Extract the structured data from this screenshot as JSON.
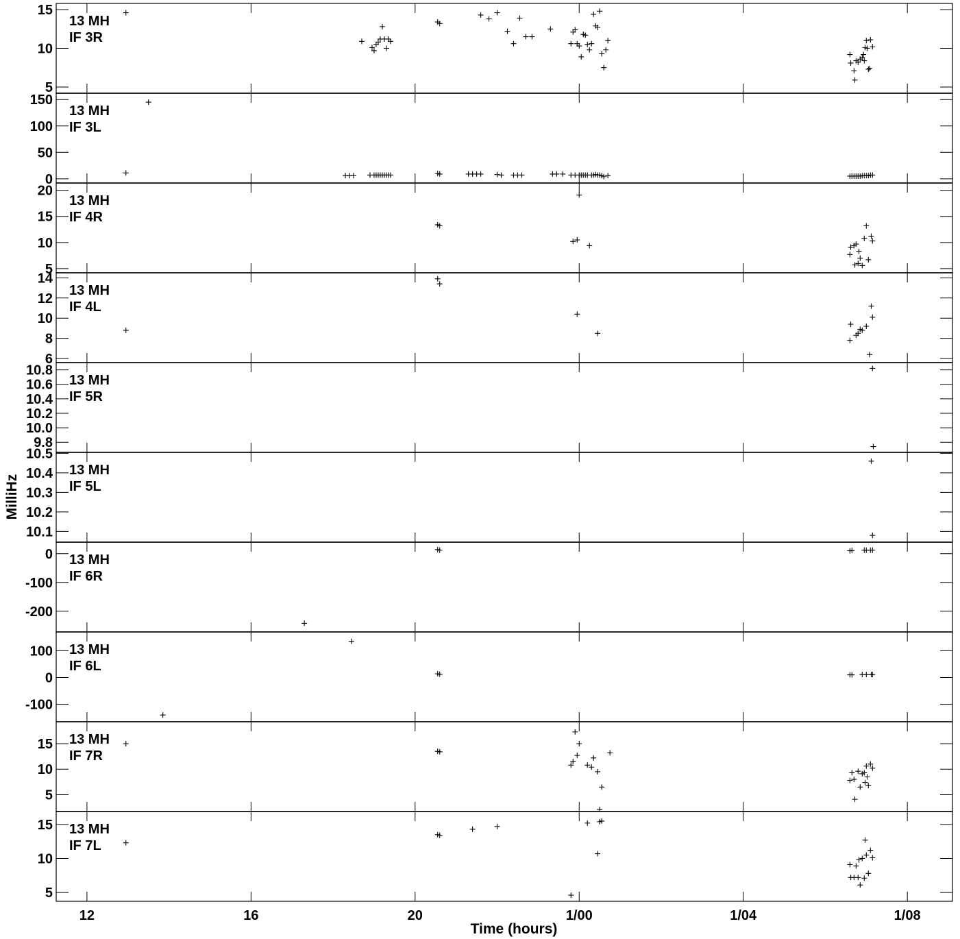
{
  "chart_data": {
    "type": "scatter",
    "xlabel": "Time (hours)",
    "ylabel": "MilliHz",
    "x_range": [
      11.25,
      33.1
    ],
    "x_ticks": [
      {
        "t": 12,
        "label": "12"
      },
      {
        "t": 16,
        "label": "16"
      },
      {
        "t": 20,
        "label": "20"
      },
      {
        "t": 24,
        "label": "1/00"
      },
      {
        "t": 28,
        "label": "1/04"
      },
      {
        "t": 32,
        "label": "1/08"
      }
    ],
    "panels": [
      {
        "antenna": "13 MH",
        "if": "IF 3R",
        "ylim": [
          4.2,
          15.8
        ],
        "yticks": [
          {
            "v": 5,
            "label": "5"
          },
          {
            "v": 10,
            "label": "10"
          },
          {
            "v": 15,
            "label": "15"
          }
        ],
        "points": [
          [
            12.95,
            14.6
          ],
          [
            18.7,
            10.9
          ],
          [
            18.95,
            10.1
          ],
          [
            19.0,
            9.7
          ],
          [
            19.05,
            10.5
          ],
          [
            19.1,
            10.8
          ],
          [
            19.15,
            11.2
          ],
          [
            19.2,
            12.8
          ],
          [
            19.25,
            11.2
          ],
          [
            19.3,
            10.0
          ],
          [
            19.35,
            11.2
          ],
          [
            19.4,
            10.9
          ],
          [
            20.55,
            13.4
          ],
          [
            20.6,
            13.2
          ],
          [
            21.6,
            14.3
          ],
          [
            21.8,
            13.8
          ],
          [
            22.0,
            14.6
          ],
          [
            22.25,
            12.2
          ],
          [
            22.4,
            10.6
          ],
          [
            22.55,
            13.9
          ],
          [
            22.7,
            11.5
          ],
          [
            22.85,
            11.5
          ],
          [
            23.3,
            12.5
          ],
          [
            23.8,
            10.6
          ],
          [
            23.85,
            12.1
          ],
          [
            23.9,
            12.4
          ],
          [
            23.95,
            10.6
          ],
          [
            24.0,
            10.3
          ],
          [
            24.05,
            8.9
          ],
          [
            24.1,
            11.8
          ],
          [
            24.15,
            11.7
          ],
          [
            24.2,
            10.5
          ],
          [
            24.25,
            9.8
          ],
          [
            24.3,
            10.6
          ],
          [
            24.35,
            14.4
          ],
          [
            24.4,
            12.9
          ],
          [
            24.45,
            12.7
          ],
          [
            24.5,
            14.8
          ],
          [
            24.55,
            9.3
          ],
          [
            24.6,
            7.5
          ],
          [
            24.65,
            9.8
          ],
          [
            24.7,
            11.0
          ],
          [
            30.6,
            9.2
          ],
          [
            30.62,
            8.1
          ],
          [
            30.7,
            7.1
          ],
          [
            30.72,
            5.9
          ],
          [
            30.75,
            8.4
          ],
          [
            30.8,
            8.2
          ],
          [
            30.85,
            8.6
          ],
          [
            30.9,
            8.8
          ],
          [
            30.93,
            9.2
          ],
          [
            30.95,
            8.4
          ],
          [
            30.97,
            10.1
          ],
          [
            31.0,
            11.0
          ],
          [
            31.02,
            10.0
          ],
          [
            31.05,
            7.3
          ],
          [
            31.08,
            7.4
          ],
          [
            31.1,
            11.1
          ],
          [
            31.15,
            10.2
          ]
        ]
      },
      {
        "antenna": "13 MH",
        "if": "IF 3L",
        "ylim": [
          -8,
          162
        ],
        "yticks": [
          {
            "v": 0,
            "label": "0"
          },
          {
            "v": 50,
            "label": "50"
          },
          {
            "v": 100,
            "label": "100"
          },
          {
            "v": 150,
            "label": "150"
          }
        ],
        "points": [
          [
            13.5,
            145
          ],
          [
            12.95,
            11
          ],
          [
            18.3,
            6
          ],
          [
            18.4,
            6
          ],
          [
            18.5,
            6
          ],
          [
            18.9,
            7
          ],
          [
            19.0,
            7
          ],
          [
            19.05,
            7
          ],
          [
            19.1,
            7
          ],
          [
            19.15,
            7
          ],
          [
            19.2,
            7
          ],
          [
            19.25,
            7
          ],
          [
            19.3,
            7
          ],
          [
            19.35,
            7
          ],
          [
            19.4,
            7
          ],
          [
            20.55,
            10
          ],
          [
            20.6,
            9
          ],
          [
            21.3,
            9
          ],
          [
            21.4,
            9
          ],
          [
            21.5,
            9
          ],
          [
            21.6,
            9
          ],
          [
            22.0,
            8
          ],
          [
            22.1,
            7
          ],
          [
            22.4,
            7
          ],
          [
            22.5,
            7
          ],
          [
            22.6,
            7
          ],
          [
            23.35,
            9
          ],
          [
            23.45,
            9
          ],
          [
            23.6,
            9
          ],
          [
            23.8,
            7
          ],
          [
            23.9,
            7
          ],
          [
            24.0,
            7
          ],
          [
            24.05,
            7
          ],
          [
            24.1,
            7
          ],
          [
            24.15,
            7
          ],
          [
            24.2,
            7
          ],
          [
            24.3,
            7
          ],
          [
            24.35,
            7
          ],
          [
            24.4,
            8
          ],
          [
            24.45,
            7
          ],
          [
            24.5,
            7
          ],
          [
            24.55,
            6
          ],
          [
            24.6,
            4
          ],
          [
            24.7,
            6
          ],
          [
            30.6,
            5
          ],
          [
            30.65,
            5
          ],
          [
            30.7,
            5
          ],
          [
            30.75,
            5
          ],
          [
            30.8,
            5
          ],
          [
            30.85,
            5
          ],
          [
            30.9,
            6
          ],
          [
            30.95,
            6
          ],
          [
            31.0,
            6
          ],
          [
            31.05,
            6
          ],
          [
            31.1,
            7
          ],
          [
            31.15,
            7
          ]
        ]
      },
      {
        "antenna": "13 MH",
        "if": "IF 4R",
        "ylim": [
          4.2,
          21.4
        ],
        "yticks": [
          {
            "v": 5,
            "label": "5"
          },
          {
            "v": 10,
            "label": "10"
          },
          {
            "v": 15,
            "label": "15"
          },
          {
            "v": 20,
            "label": "20"
          }
        ],
        "points": [
          [
            20.55,
            13.4
          ],
          [
            20.6,
            13.2
          ],
          [
            23.85,
            10.2
          ],
          [
            23.95,
            10.5
          ],
          [
            24.0,
            19.1
          ],
          [
            24.25,
            9.4
          ],
          [
            30.6,
            7.7
          ],
          [
            30.62,
            9.1
          ],
          [
            30.7,
            9.4
          ],
          [
            30.72,
            5.7
          ],
          [
            30.75,
            9.7
          ],
          [
            30.8,
            6.0
          ],
          [
            30.82,
            8.3
          ],
          [
            30.85,
            7.0
          ],
          [
            30.9,
            5.6
          ],
          [
            30.95,
            10.8
          ],
          [
            31.0,
            13.2
          ],
          [
            31.05,
            6.7
          ],
          [
            31.12,
            11.2
          ],
          [
            31.15,
            10.3
          ]
        ]
      },
      {
        "antenna": "13 MH",
        "if": "IF 4L",
        "ylim": [
          5.6,
          14.5
        ],
        "yticks": [
          {
            "v": 6,
            "label": "6"
          },
          {
            "v": 8,
            "label": "8"
          },
          {
            "v": 10,
            "label": "10"
          },
          {
            "v": 12,
            "label": "12"
          },
          {
            "v": 14,
            "label": "14"
          }
        ],
        "points": [
          [
            12.95,
            8.8
          ],
          [
            20.55,
            13.9
          ],
          [
            20.6,
            13.4
          ],
          [
            23.95,
            10.4
          ],
          [
            24.45,
            8.5
          ],
          [
            30.6,
            7.8
          ],
          [
            30.62,
            9.4
          ],
          [
            30.75,
            8.3
          ],
          [
            30.8,
            8.5
          ],
          [
            30.85,
            8.9
          ],
          [
            30.9,
            8.8
          ],
          [
            31.0,
            9.2
          ],
          [
            31.08,
            6.4
          ],
          [
            31.12,
            11.2
          ],
          [
            31.15,
            10.1
          ]
        ]
      },
      {
        "antenna": "13 MH",
        "if": "IF 5R",
        "ylim": [
          9.66,
          10.9
        ],
        "yticks": [
          {
            "v": 9.8,
            "label": "9.8"
          },
          {
            "v": 10.0,
            "label": "10.0"
          },
          {
            "v": 10.2,
            "label": "10.2"
          },
          {
            "v": 10.4,
            "label": "10.4"
          },
          {
            "v": 10.6,
            "label": "10.6"
          },
          {
            "v": 10.8,
            "label": "10.8"
          }
        ],
        "points": [
          [
            31.15,
            10.82
          ],
          [
            31.17,
            9.74
          ]
        ]
      },
      {
        "antenna": "13 MH",
        "if": "IF 5L",
        "ylim": [
          10.045,
          10.505
        ],
        "yticks": [
          {
            "v": 10.1,
            "label": "10.1"
          },
          {
            "v": 10.2,
            "label": "10.2"
          },
          {
            "v": 10.3,
            "label": "10.3"
          },
          {
            "v": 10.4,
            "label": "10.4"
          },
          {
            "v": 10.5,
            "label": "10.5"
          }
        ],
        "points": [
          [
            31.12,
            10.46
          ],
          [
            31.15,
            10.08
          ]
        ]
      },
      {
        "antenna": "13 MH",
        "if": "IF 6R",
        "ylim": [
          -272,
          40
        ],
        "yticks": [
          {
            "v": -200,
            "label": "-200"
          },
          {
            "v": -100,
            "label": "-100"
          },
          {
            "v": 0,
            "label": "0"
          }
        ],
        "points": [
          [
            20.55,
            14
          ],
          [
            20.6,
            12
          ],
          [
            17.3,
            -242
          ],
          [
            30.6,
            10
          ],
          [
            30.65,
            11
          ],
          [
            30.95,
            12
          ],
          [
            31.0,
            12
          ],
          [
            31.1,
            12
          ],
          [
            31.15,
            12
          ]
        ]
      },
      {
        "antenna": "13 MH",
        "if": "IF 6L",
        "ylim": [
          -165,
          170
        ],
        "yticks": [
          {
            "v": -100,
            "label": "-100"
          },
          {
            "v": 0,
            "label": "0"
          },
          {
            "v": 100,
            "label": "100"
          }
        ],
        "points": [
          [
            18.45,
            135
          ],
          [
            20.55,
            14
          ],
          [
            20.6,
            12
          ],
          [
            13.85,
            -140
          ],
          [
            30.6,
            10
          ],
          [
            30.65,
            10
          ],
          [
            30.9,
            11
          ],
          [
            31.0,
            11
          ],
          [
            31.12,
            11
          ],
          [
            31.15,
            11
          ]
        ]
      },
      {
        "antenna": "13 MH",
        "if": "IF 7R",
        "ylim": [
          1.7,
          19.3
        ],
        "yticks": [
          {
            "v": 5,
            "label": "5"
          },
          {
            "v": 10,
            "label": "10"
          },
          {
            "v": 15,
            "label": "15"
          }
        ],
        "points": [
          [
            12.95,
            15.0
          ],
          [
            20.55,
            13.5
          ],
          [
            20.6,
            13.4
          ],
          [
            23.8,
            10.8
          ],
          [
            23.85,
            11.5
          ],
          [
            23.9,
            17.3
          ],
          [
            23.95,
            12.7
          ],
          [
            24.0,
            15.0
          ],
          [
            24.2,
            10.8
          ],
          [
            24.3,
            10.4
          ],
          [
            24.35,
            12.2
          ],
          [
            24.45,
            9.5
          ],
          [
            24.55,
            6.5
          ],
          [
            24.5,
            2.1
          ],
          [
            24.75,
            13.2
          ],
          [
            30.6,
            7.8
          ],
          [
            30.65,
            9.3
          ],
          [
            30.7,
            8.0
          ],
          [
            30.72,
            4.1
          ],
          [
            30.8,
            9.6
          ],
          [
            30.85,
            6.5
          ],
          [
            30.9,
            9.1
          ],
          [
            30.95,
            9.3
          ],
          [
            30.97,
            7.4
          ],
          [
            31.0,
            10.6
          ],
          [
            31.02,
            8.5
          ],
          [
            31.05,
            6.8
          ],
          [
            31.1,
            11.0
          ],
          [
            31.15,
            10.2
          ]
        ]
      },
      {
        "antenna": "13 MH",
        "if": "IF 7L",
        "ylim": [
          3.7,
          16.9
        ],
        "yticks": [
          {
            "v": 5,
            "label": "5"
          },
          {
            "v": 10,
            "label": "10"
          },
          {
            "v": 15,
            "label": "15"
          }
        ],
        "points": [
          [
            12.95,
            12.3
          ],
          [
            20.55,
            13.5
          ],
          [
            20.6,
            13.4
          ],
          [
            21.4,
            14.3
          ],
          [
            22.0,
            14.7
          ],
          [
            23.8,
            4.6
          ],
          [
            24.2,
            15.2
          ],
          [
            24.45,
            10.7
          ],
          [
            24.5,
            15.4
          ],
          [
            24.55,
            15.5
          ],
          [
            30.6,
            9.1
          ],
          [
            30.62,
            7.2
          ],
          [
            30.7,
            7.2
          ],
          [
            30.75,
            8.9
          ],
          [
            30.8,
            7.2
          ],
          [
            30.82,
            9.8
          ],
          [
            30.85,
            6.1
          ],
          [
            30.9,
            10.0
          ],
          [
            30.95,
            7.1
          ],
          [
            30.97,
            12.7
          ],
          [
            31.0,
            10.5
          ],
          [
            31.05,
            7.8
          ],
          [
            31.1,
            11.2
          ],
          [
            31.15,
            10.1
          ]
        ]
      }
    ]
  }
}
